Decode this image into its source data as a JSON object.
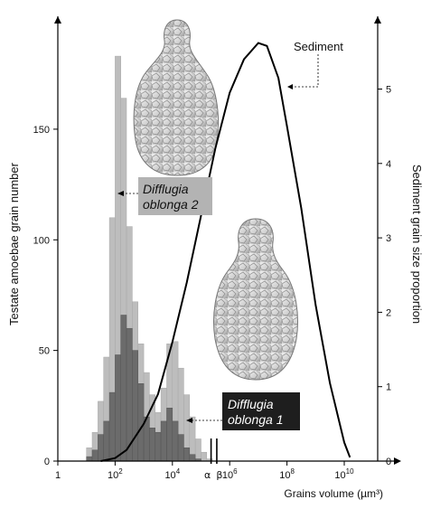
{
  "chart_data": {
    "type": "bar",
    "y_left_label": "Testate amoebae grain number",
    "y_right_label": "Sediment grain size proportion",
    "x_label": "Grains volume (µm³)",
    "x_scale": "log10",
    "x_ticks": [
      {
        "exp": 0,
        "label": "1"
      },
      {
        "exp": 2,
        "label": "10",
        "sup": "2"
      },
      {
        "exp": 4,
        "label": "10",
        "sup": "4"
      },
      {
        "exp": 6,
        "label": "10",
        "sup": "6"
      },
      {
        "exp": 8,
        "label": "10",
        "sup": "8"
      },
      {
        "exp": 10,
        "label": "10",
        "sup": "10"
      }
    ],
    "left_ticks": [
      0,
      50,
      100,
      150
    ],
    "right_ticks": [
      0,
      1,
      2,
      3,
      4,
      5
    ],
    "left_ylim": [
      0,
      190
    ],
    "right_ylim": [
      0,
      5.65
    ],
    "markers": [
      {
        "label": "α",
        "exp": 5.35
      },
      {
        "label": "β",
        "exp": 5.55
      }
    ],
    "bin_width_log": 0.2,
    "hist_start_exp": 1.0,
    "series": [
      {
        "name": "Difflugia oblonga 2",
        "color": "#bdbdbd",
        "values": [
          6,
          13,
          27,
          47,
          110,
          183,
          164,
          106,
          72,
          53,
          40,
          30,
          22,
          33,
          53,
          54,
          42,
          30,
          20,
          10,
          4,
          1
        ]
      },
      {
        "name": "Difflugia oblonga 1",
        "color": "#6b6b6b",
        "values": [
          2,
          5,
          12,
          18,
          31,
          48,
          66,
          60,
          50,
          35,
          20,
          15,
          13,
          18,
          24,
          18,
          12,
          6,
          3,
          1,
          0,
          0
        ]
      },
      {
        "name": "Sediment",
        "type": "line",
        "axis": "right",
        "x": [
          1.5,
          2.0,
          2.4,
          3.0,
          3.5,
          4.0,
          4.5,
          5.0,
          5.5,
          6.0,
          6.5,
          7.0,
          7.3,
          7.7,
          8.0,
          8.5,
          9.0,
          9.5,
          10.0,
          10.2
        ],
        "values": [
          0.0,
          0.04,
          0.15,
          0.5,
          0.9,
          1.6,
          2.4,
          3.3,
          4.2,
          4.95,
          5.4,
          5.62,
          5.58,
          5.15,
          4.5,
          3.4,
          2.1,
          1.05,
          0.25,
          0.05
        ]
      }
    ],
    "annotations": [
      {
        "id": "sed",
        "text": "Sediment"
      },
      {
        "id": "do2",
        "lines": [
          "Difflugia",
          "oblonga 2"
        ]
      },
      {
        "id": "do1",
        "lines": [
          "Difflugia",
          "oblonga 1"
        ]
      }
    ]
  }
}
